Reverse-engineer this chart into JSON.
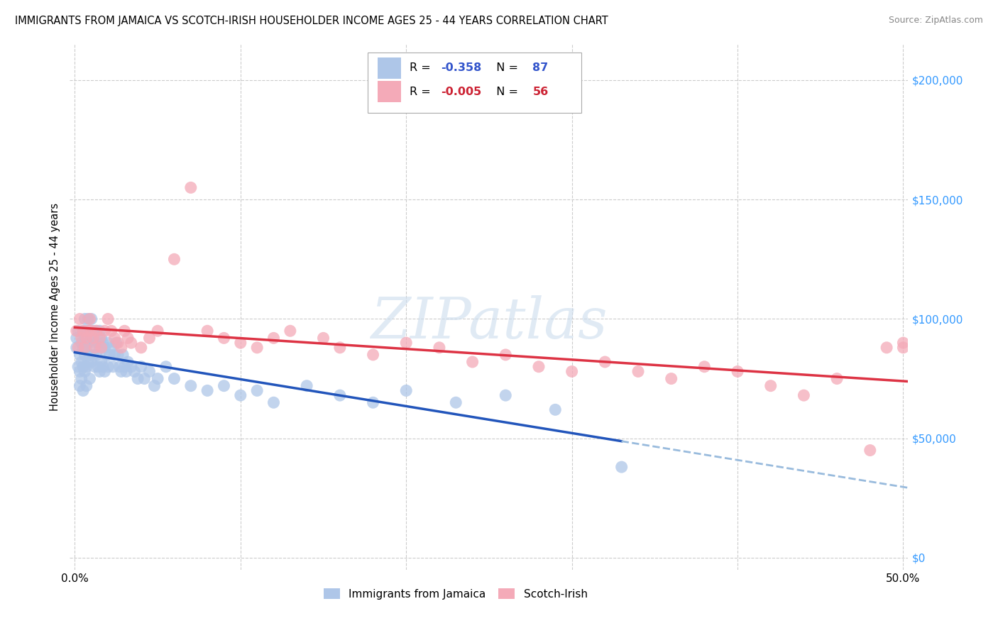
{
  "title": "IMMIGRANTS FROM JAMAICA VS SCOTCH-IRISH HOUSEHOLDER INCOME AGES 25 - 44 YEARS CORRELATION CHART",
  "source": "Source: ZipAtlas.com",
  "ylabel": "Householder Income Ages 25 - 44 years",
  "xlim": [
    -0.003,
    0.503
  ],
  "ylim": [
    -5000,
    215000
  ],
  "ylabel_vals": [
    0,
    50000,
    100000,
    150000,
    200000
  ],
  "ylabel_right_labels": [
    "$0",
    "$50,000",
    "$100,000",
    "$150,000",
    "$200,000"
  ],
  "xtick_vals": [
    0.0,
    0.1,
    0.2,
    0.3,
    0.4,
    0.5
  ],
  "xtick_labels": [
    "0.0%",
    "",
    "",
    "",
    "",
    "50.0%"
  ],
  "legend_label1": "Immigrants from Jamaica",
  "legend_label2": "Scotch-Irish",
  "r1": "-0.358",
  "n1": "87",
  "r2": "-0.005",
  "n2": "56",
  "color_blue": "#aec6e8",
  "color_pink": "#f4aab8",
  "trendline_blue": "#2255bb",
  "trendline_pink": "#dd3344",
  "trendline_dashed_color": "#99bbdd",
  "background": "#ffffff",
  "grid_color": "#cccccc",
  "watermark": "ZIPatlas",
  "jamaica_x": [
    0.001,
    0.001,
    0.002,
    0.002,
    0.003,
    0.003,
    0.003,
    0.004,
    0.004,
    0.004,
    0.005,
    0.005,
    0.005,
    0.005,
    0.006,
    0.006,
    0.006,
    0.006,
    0.007,
    0.007,
    0.007,
    0.007,
    0.008,
    0.008,
    0.008,
    0.009,
    0.009,
    0.009,
    0.01,
    0.01,
    0.01,
    0.011,
    0.011,
    0.012,
    0.012,
    0.013,
    0.013,
    0.014,
    0.014,
    0.015,
    0.015,
    0.015,
    0.016,
    0.016,
    0.017,
    0.017,
    0.018,
    0.018,
    0.019,
    0.02,
    0.02,
    0.021,
    0.022,
    0.023,
    0.024,
    0.025,
    0.026,
    0.027,
    0.028,
    0.029,
    0.03,
    0.031,
    0.032,
    0.034,
    0.036,
    0.038,
    0.04,
    0.042,
    0.045,
    0.048,
    0.05,
    0.055,
    0.06,
    0.07,
    0.08,
    0.09,
    0.1,
    0.11,
    0.12,
    0.14,
    0.16,
    0.18,
    0.2,
    0.23,
    0.26,
    0.29,
    0.33
  ],
  "jamaica_y": [
    92000,
    88000,
    95000,
    80000,
    85000,
    78000,
    72000,
    90000,
    82000,
    75000,
    95000,
    88000,
    80000,
    70000,
    100000,
    92000,
    85000,
    78000,
    95000,
    88000,
    80000,
    72000,
    100000,
    90000,
    82000,
    95000,
    85000,
    75000,
    100000,
    92000,
    82000,
    95000,
    85000,
    90000,
    80000,
    95000,
    85000,
    90000,
    80000,
    95000,
    88000,
    78000,
    92000,
    82000,
    90000,
    80000,
    88000,
    78000,
    85000,
    90000,
    80000,
    85000,
    88000,
    80000,
    85000,
    90000,
    85000,
    80000,
    78000,
    85000,
    80000,
    78000,
    82000,
    80000,
    78000,
    75000,
    80000,
    75000,
    78000,
    72000,
    75000,
    80000,
    75000,
    72000,
    70000,
    72000,
    68000,
    70000,
    65000,
    72000,
    68000,
    65000,
    70000,
    65000,
    68000,
    62000,
    38000
  ],
  "scotch_x": [
    0.001,
    0.002,
    0.003,
    0.004,
    0.005,
    0.006,
    0.007,
    0.008,
    0.009,
    0.01,
    0.011,
    0.012,
    0.013,
    0.015,
    0.016,
    0.018,
    0.02,
    0.022,
    0.024,
    0.026,
    0.028,
    0.03,
    0.032,
    0.034,
    0.04,
    0.045,
    0.05,
    0.06,
    0.07,
    0.08,
    0.09,
    0.1,
    0.11,
    0.12,
    0.13,
    0.15,
    0.16,
    0.18,
    0.2,
    0.22,
    0.24,
    0.26,
    0.28,
    0.3,
    0.32,
    0.34,
    0.36,
    0.38,
    0.4,
    0.42,
    0.44,
    0.46,
    0.48,
    0.49,
    0.5,
    0.5
  ],
  "scotch_y": [
    95000,
    88000,
    100000,
    92000,
    95000,
    88000,
    92000,
    95000,
    100000,
    95000,
    92000,
    88000,
    95000,
    92000,
    88000,
    95000,
    100000,
    95000,
    92000,
    90000,
    88000,
    95000,
    92000,
    90000,
    88000,
    92000,
    95000,
    125000,
    155000,
    95000,
    92000,
    90000,
    88000,
    92000,
    95000,
    92000,
    88000,
    85000,
    90000,
    88000,
    82000,
    85000,
    80000,
    78000,
    82000,
    78000,
    75000,
    80000,
    78000,
    72000,
    68000,
    75000,
    45000,
    88000,
    90000,
    88000
  ]
}
